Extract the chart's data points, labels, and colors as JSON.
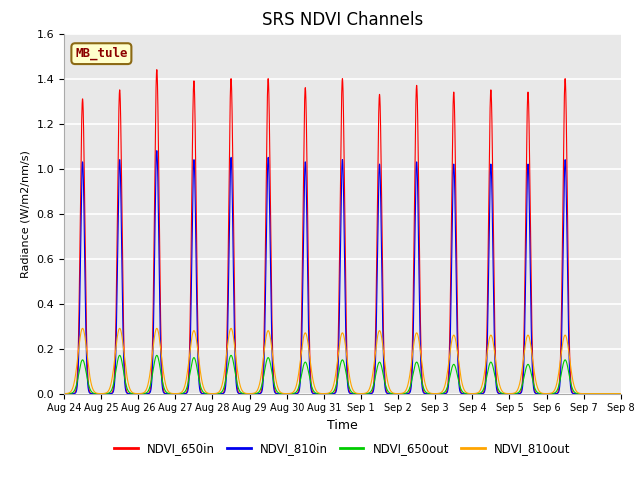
{
  "title": "SRS NDVI Channels",
  "xlabel": "Time",
  "ylabel": "Radiance (W/m2/nm/s)",
  "annotation_text": "MB_tule",
  "annotation_color": "#8B0000",
  "annotation_bg": "#FFFFCC",
  "annotation_border": "#8B6914",
  "ylim": [
    0.0,
    1.6
  ],
  "series": {
    "NDVI_650in": {
      "color": "#FF0000",
      "peak_heights": [
        1.31,
        1.35,
        1.44,
        1.39,
        1.4,
        1.4,
        1.36,
        1.4,
        1.33,
        1.37,
        1.34,
        1.35,
        1.34,
        1.4
      ],
      "sigma": 0.06
    },
    "NDVI_810in": {
      "color": "#0000EE",
      "peak_heights": [
        1.03,
        1.04,
        1.08,
        1.04,
        1.05,
        1.05,
        1.03,
        1.04,
        1.02,
        1.03,
        1.02,
        1.02,
        1.02,
        1.04
      ],
      "sigma": 0.055
    },
    "NDVI_650out": {
      "color": "#00CC00",
      "peak_heights": [
        0.15,
        0.17,
        0.17,
        0.16,
        0.17,
        0.16,
        0.14,
        0.15,
        0.14,
        0.14,
        0.13,
        0.14,
        0.13,
        0.15
      ],
      "sigma": 0.1
    },
    "NDVI_810out": {
      "color": "#FFA500",
      "peak_heights": [
        0.29,
        0.29,
        0.29,
        0.28,
        0.29,
        0.28,
        0.27,
        0.27,
        0.28,
        0.27,
        0.26,
        0.26,
        0.26,
        0.26
      ],
      "sigma": 0.12
    }
  },
  "tick_labels": [
    "Aug 24",
    "Aug 25",
    "Aug 26",
    "Aug 27",
    "Aug 28",
    "Aug 29",
    "Aug 30",
    "Aug 31",
    "Sep 1",
    "Sep 2",
    "Sep 3",
    "Sep 4",
    "Sep 5",
    "Sep 6",
    "Sep 7",
    "Sep 8"
  ],
  "n_peaks": 14,
  "total_days": 15,
  "plot_bg": "#E8E8E8",
  "fig_bg": "#FFFFFF",
  "grid_color": "#FFFFFF",
  "legend_colors": [
    "#FF0000",
    "#0000EE",
    "#00CC00",
    "#FFA500"
  ],
  "legend_labels": [
    "NDVI_650in",
    "NDVI_810in",
    "NDVI_650out",
    "NDVI_810out"
  ]
}
